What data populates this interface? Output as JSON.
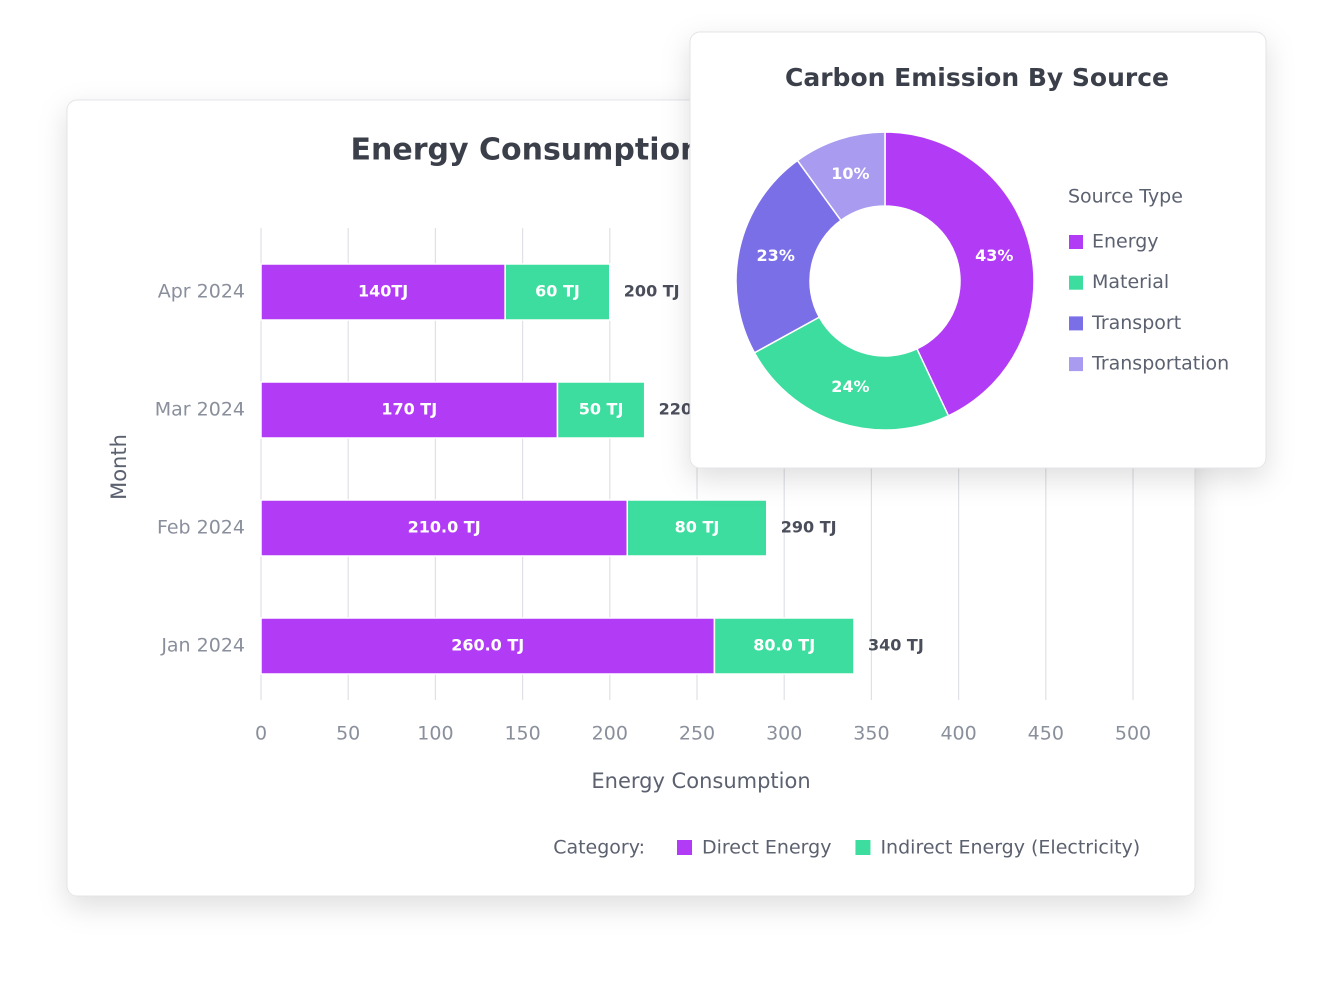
{
  "chart_data": [
    {
      "type": "bar",
      "orientation": "horizontal",
      "stacked": true,
      "title": "Energy Consumption",
      "x_label": "Energy Consumption",
      "y_label": "Month",
      "categories": [
        "Apr 2024",
        "Mar 2024",
        "Feb 2024",
        "Jan 2024"
      ],
      "series": [
        {
          "name": "Direct Energy",
          "color": "#b23cf5",
          "values": [
            140,
            170,
            210,
            260
          ],
          "value_labels": [
            "140TJ",
            "170 TJ",
            "210.0 TJ",
            "260.0 TJ"
          ]
        },
        {
          "name": "Indirect Energy (Electricity)",
          "color": "#3ddc9f",
          "values": [
            60,
            50,
            80,
            80
          ],
          "value_labels": [
            "60 TJ",
            "50 TJ",
            "80 TJ",
            "80.0 TJ"
          ]
        }
      ],
      "total_labels": [
        "200 TJ",
        "220 TJ",
        "290 TJ",
        "340 TJ"
      ],
      "xlim": [
        0,
        500
      ],
      "xticks": [
        0,
        50,
        100,
        150,
        200,
        250,
        300,
        350,
        400,
        450,
        500
      ],
      "grid": true,
      "legend_title": "Category:",
      "legend_position": "bottom"
    },
    {
      "type": "donut",
      "title": "Carbon Emission By Source",
      "legend_title": "Source Type",
      "legend_position": "right",
      "categories": [
        "Energy",
        "Material",
        "Transport",
        "Transportation"
      ],
      "values": [
        43,
        24,
        23,
        10
      ],
      "value_labels": [
        "43%",
        "24%",
        "23%",
        "10%"
      ],
      "colors": [
        "#b23cf5",
        "#3ddc9f",
        "#7b6fe8",
        "#a99cf0"
      ]
    }
  ]
}
